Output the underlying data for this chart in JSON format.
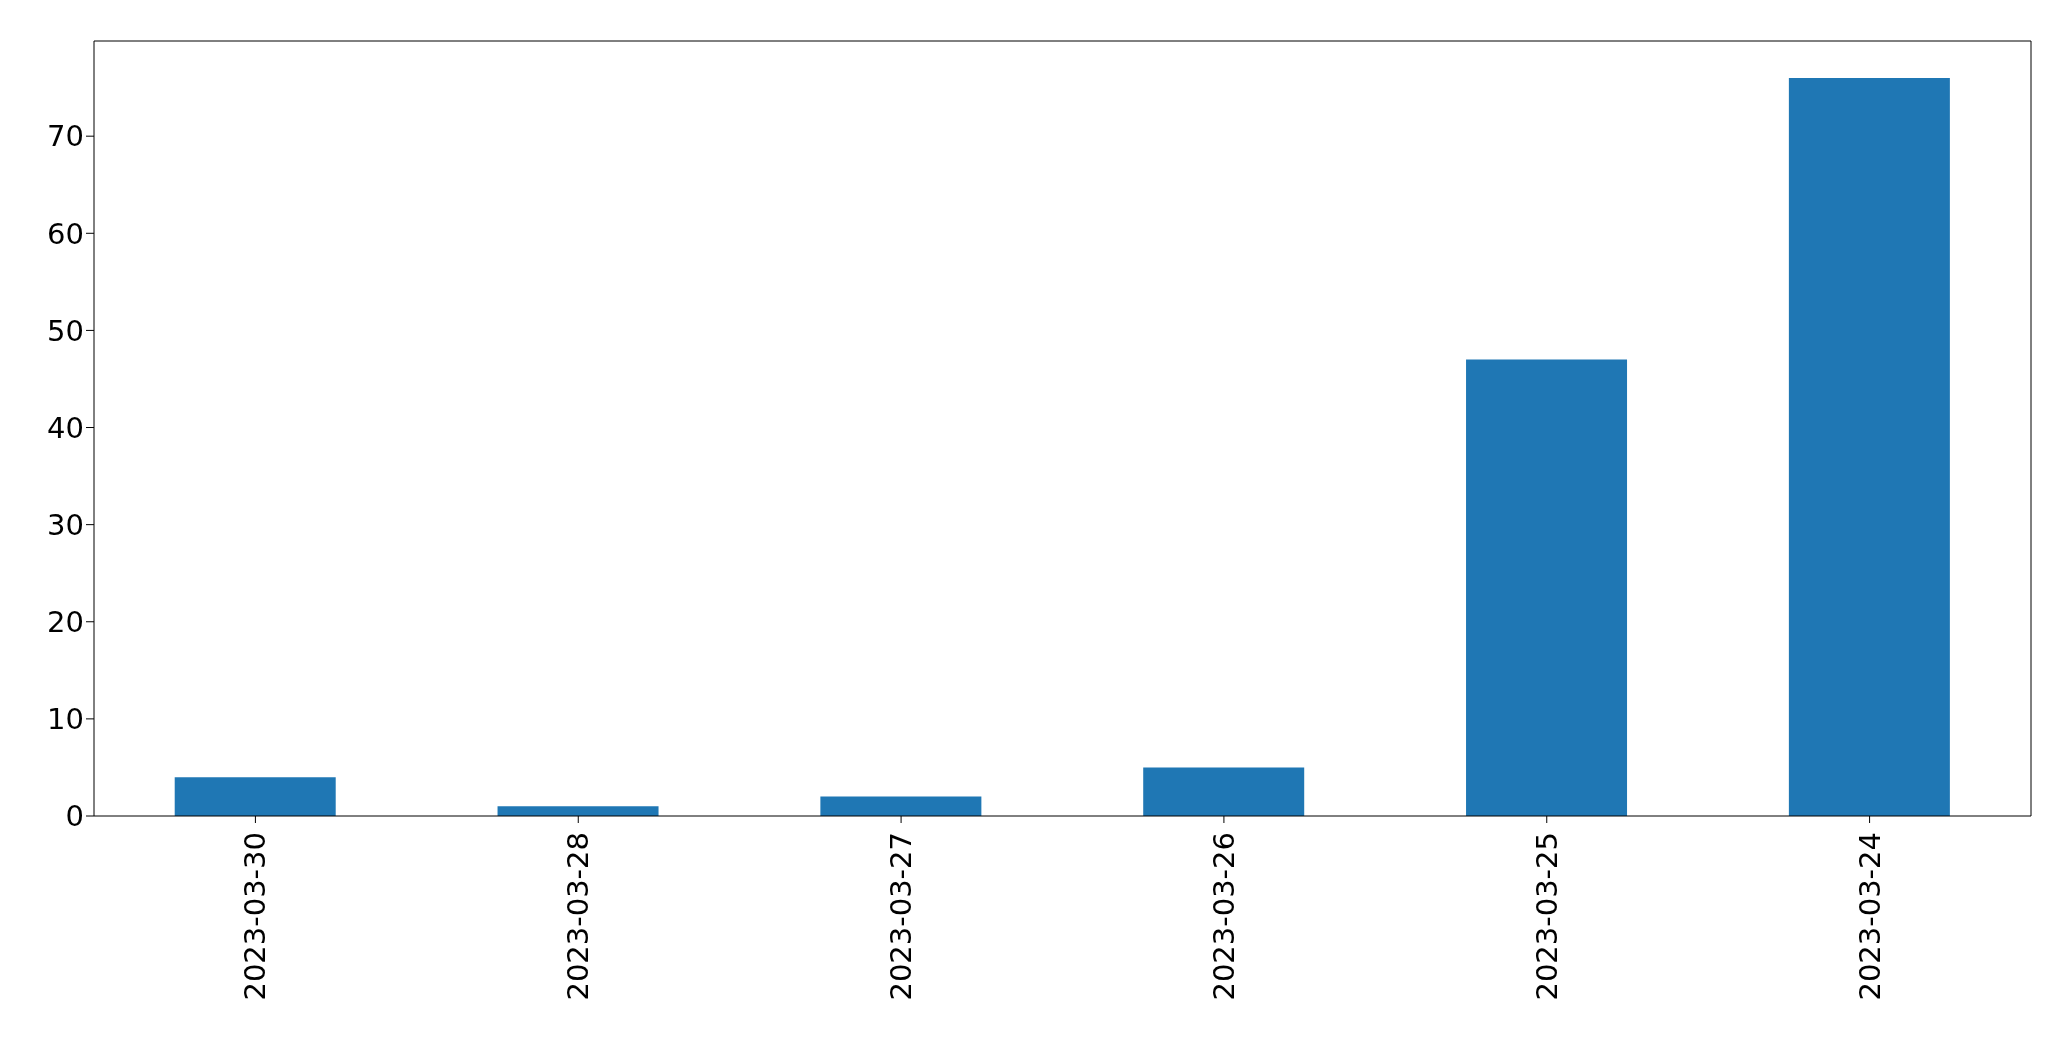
{
  "chart_data": {
    "type": "bar",
    "categories": [
      "2023-03-30",
      "2023-03-28",
      "2023-03-27",
      "2023-03-26",
      "2023-03-25",
      "2023-03-24"
    ],
    "values": [
      4,
      1,
      2,
      5,
      47,
      76
    ],
    "color": "#1f77b4",
    "ylim": [
      0,
      79.8
    ],
    "yticks": [
      0,
      10,
      20,
      30,
      40,
      50,
      60,
      70
    ],
    "grid": false,
    "legend": false
  }
}
